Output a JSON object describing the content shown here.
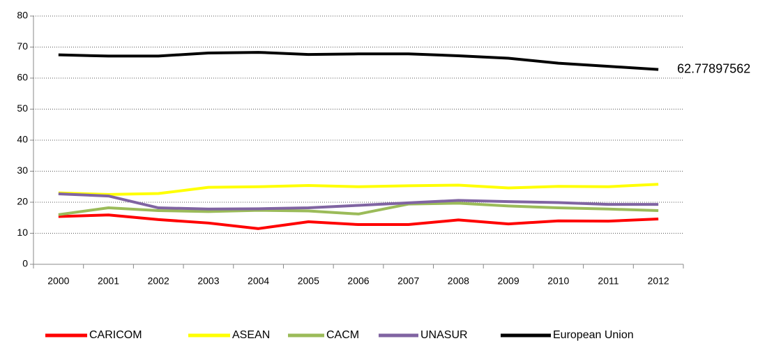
{
  "chart_data": {
    "type": "line",
    "categories": [
      "2000",
      "2001",
      "2002",
      "2003",
      "2004",
      "2005",
      "2006",
      "2007",
      "2008",
      "2009",
      "2010",
      "2011",
      "2012"
    ],
    "series": [
      {
        "name": "CARICOM",
        "color": "#ff0000",
        "values": [
          15.4,
          15.9,
          14.4,
          13.3,
          11.5,
          13.7,
          12.8,
          12.8,
          14.3,
          13.0,
          14.0,
          13.9,
          14.6
        ]
      },
      {
        "name": "ASEAN",
        "color": "#ffff00",
        "values": [
          23.0,
          22.5,
          22.8,
          24.8,
          25.0,
          25.4,
          25.0,
          25.3,
          25.5,
          24.6,
          25.1,
          25.0,
          25.8
        ]
      },
      {
        "name": "CACM",
        "color": "#9bbb59",
        "values": [
          16.0,
          18.2,
          17.3,
          17.0,
          17.4,
          17.2,
          16.2,
          19.4,
          19.7,
          18.8,
          18.2,
          17.8,
          17.3
        ]
      },
      {
        "name": "UNASUR",
        "color": "#8064a2",
        "values": [
          22.7,
          22.0,
          18.2,
          17.8,
          17.9,
          18.2,
          19.0,
          19.8,
          20.6,
          20.2,
          19.9,
          19.3,
          19.3
        ]
      },
      {
        "name": "European Union",
        "color": "#000000",
        "values": [
          67.5,
          67.1,
          67.1,
          68.1,
          68.3,
          67.6,
          67.8,
          67.8,
          67.2,
          66.4,
          64.8,
          63.8,
          62.77897562
        ]
      }
    ],
    "ylim": [
      0,
      80
    ],
    "yticks": [
      0,
      10,
      20,
      30,
      40,
      50,
      60,
      70,
      80
    ],
    "grid": true,
    "legend": "bottom"
  }
}
